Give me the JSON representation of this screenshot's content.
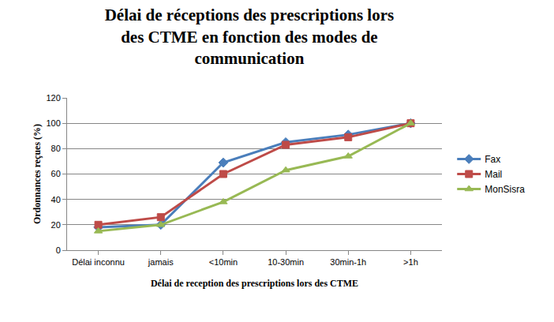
{
  "chart_data": {
    "type": "line",
    "title": "Délai de réceptions des prescriptions lors des CTME en fonction des modes de communication",
    "x_label": "Délai de reception des prescriptions lors des CTME",
    "y_label": "Ordonnances reçues (%)",
    "categories": [
      "Délai inconnu",
      "jamais",
      "<10min",
      "10-30min",
      "30min-1h",
      ">1h"
    ],
    "series": [
      {
        "name": "Fax",
        "color": "#4a7ebb",
        "marker": "diamond",
        "values": [
          18,
          20,
          69,
          85,
          91,
          100
        ]
      },
      {
        "name": "Mail",
        "color": "#be4b48",
        "marker": "square",
        "values": [
          20,
          26,
          60,
          83,
          89,
          100
        ]
      },
      {
        "name": "MonSisra",
        "color": "#98b954",
        "marker": "triangle",
        "values": [
          15,
          20,
          38,
          63,
          74,
          100
        ]
      }
    ],
    "ylim": [
      0,
      120
    ],
    "yticks": [
      0,
      20,
      40,
      60,
      80,
      100,
      120
    ],
    "grid": true,
    "legend": "right"
  }
}
